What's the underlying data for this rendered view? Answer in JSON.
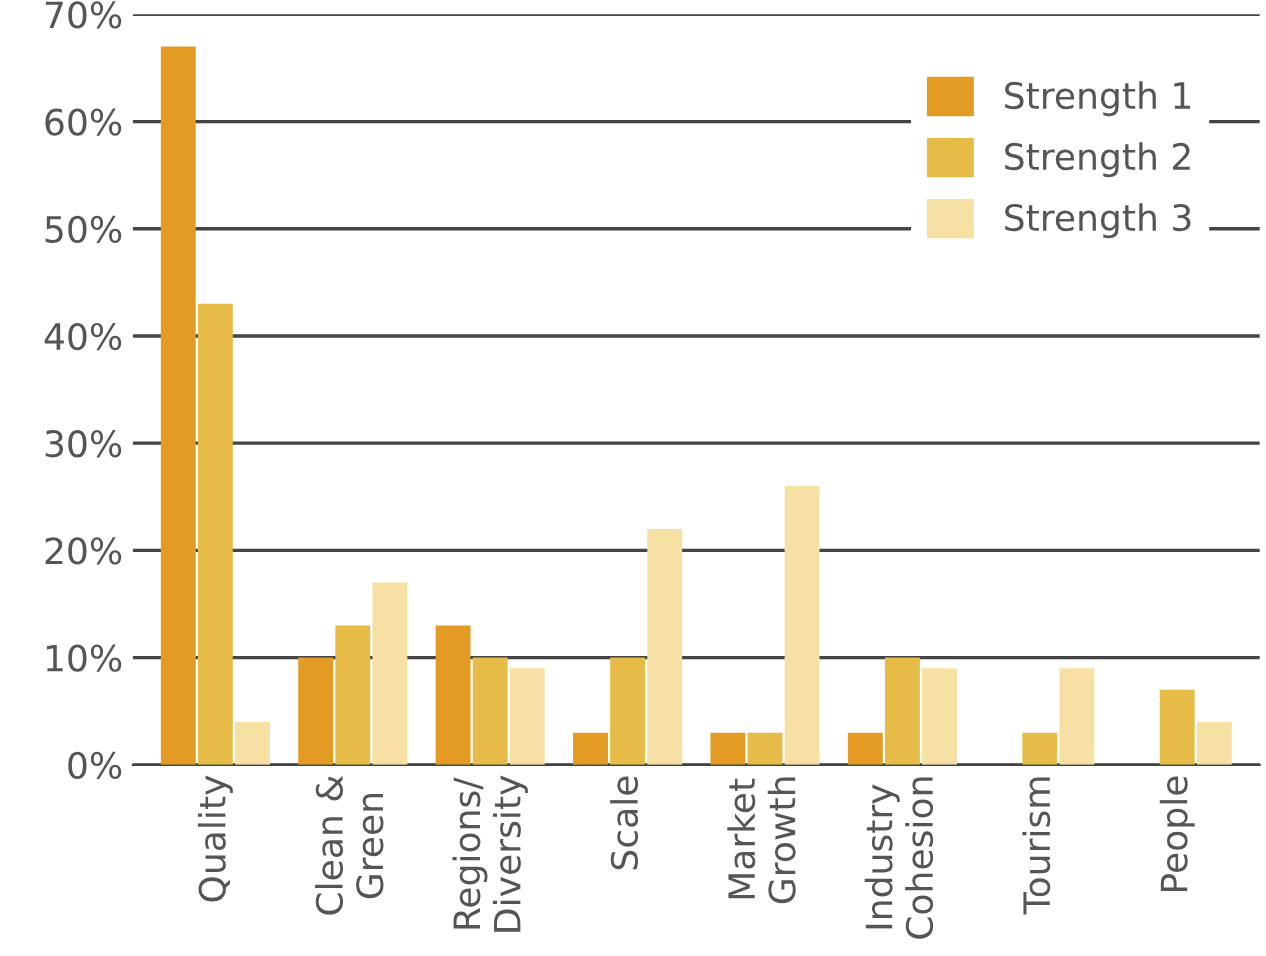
{
  "chart_data": {
    "type": "bar",
    "categories": [
      "Quality",
      "Clean &\nGreen",
      "Regions/\nDiversity",
      "Scale",
      "Market\nGrowth",
      "Industry\nCohesion",
      "Tourism",
      "People"
    ],
    "series": [
      {
        "name": "Strength 1",
        "color": "#e39b24",
        "values": [
          67,
          10,
          13,
          3,
          3,
          3,
          0,
          0
        ]
      },
      {
        "name": "Strength 2",
        "color": "#e6bb48",
        "values": [
          43,
          13,
          10,
          10,
          3,
          10,
          3,
          7
        ]
      },
      {
        "name": "Strength 3",
        "color": "#f6e0a4",
        "values": [
          4,
          17,
          9,
          22,
          26,
          9,
          9,
          4
        ]
      }
    ],
    "ylim": [
      0,
      70
    ],
    "yticks": [
      {
        "value": 0,
        "label": "0%"
      },
      {
        "value": 10,
        "label": "10%"
      },
      {
        "value": 20,
        "label": "20%"
      },
      {
        "value": 30,
        "label": "30%"
      },
      {
        "value": 40,
        "label": "40%"
      },
      {
        "value": 50,
        "label": "50%"
      },
      {
        "value": 60,
        "label": "60%"
      },
      {
        "value": 70,
        "label": "70%"
      }
    ],
    "grid": "y",
    "legend": "top right"
  }
}
